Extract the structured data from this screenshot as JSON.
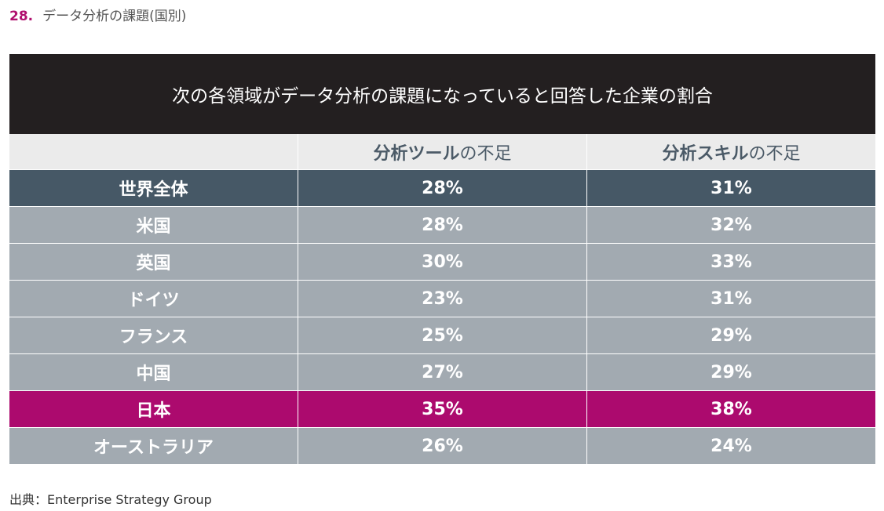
{
  "figure": {
    "number": "28.",
    "title": "データ分析の課題(国別)"
  },
  "chart_data": {
    "type": "table",
    "title": "次の各領域がデータ分析の課題になっていると回答した企業の割合",
    "columns": [
      {
        "bold": "分析ツール",
        "normal": "の不足"
      },
      {
        "bold": "分析スキル",
        "normal": "の不足"
      }
    ],
    "rows": [
      {
        "label": "世界全体",
        "values": [
          "28%",
          "31%"
        ],
        "style": "world"
      },
      {
        "label": "米国",
        "values": [
          "28%",
          "32%"
        ],
        "style": "normal"
      },
      {
        "label": "英国",
        "values": [
          "30%",
          "33%"
        ],
        "style": "normal"
      },
      {
        "label": "ドイツ",
        "values": [
          "23%",
          "31%"
        ],
        "style": "normal"
      },
      {
        "label": "フランス",
        "values": [
          "25%",
          "29%"
        ],
        "style": "normal"
      },
      {
        "label": "中国",
        "values": [
          "27%",
          "29%"
        ],
        "style": "normal"
      },
      {
        "label": "日本",
        "values": [
          "35%",
          "38%"
        ],
        "style": "highlight"
      },
      {
        "label": "オーストラリア",
        "values": [
          "26%",
          "24%"
        ],
        "style": "normal"
      }
    ],
    "colors": {
      "header_bg": "#231f20",
      "world_row": "#465866",
      "normal_row": "#a2aab1",
      "highlight_row": "#ac0a6e",
      "column_header_bg": "#ebebeb",
      "accent": "#b0106e"
    }
  },
  "source": "出典：Enterprise Strategy Group"
}
